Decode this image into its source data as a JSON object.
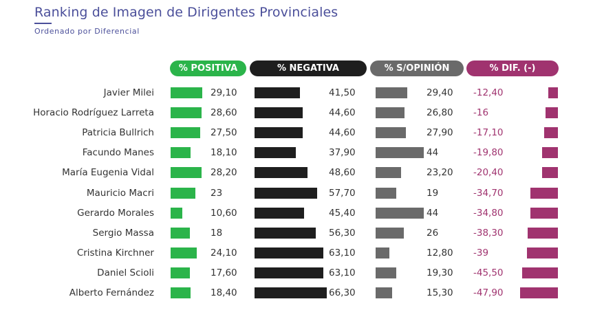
{
  "title": "Ranking de Imagen de Dirigentes Provinciales",
  "subtitle": "Ordenado por Diferencial",
  "colors": {
    "title": "#4b4f9a",
    "positiva": "#2bb44a",
    "negativa": "#1e1e1e",
    "sin_opinion": "#6a6a6a",
    "diferencial": "#a0336f"
  },
  "chart_data": {
    "type": "bar",
    "columns": [
      "% POSITIVA",
      "% NEGATIVA",
      "% S/OPINIÓN",
      "% DIF. (-)"
    ],
    "categories": [
      "Javier Milei",
      "Horacio Rodríguez Larreta",
      "Patricia Bullrich",
      "Facundo Manes",
      "María Eugenia Vidal",
      "Mauricio Macri",
      "Gerardo Morales",
      "Sergio Massa",
      "Cristina Kirchner",
      "Daniel Scioli",
      "Alberto Fernández"
    ],
    "series": [
      {
        "name": "% POSITIVA",
        "values": [
          29.1,
          28.6,
          27.5,
          18.1,
          28.2,
          23,
          10.6,
          18,
          24.1,
          17.6,
          18.4
        ],
        "labels": [
          "29,10",
          "28,60",
          "27,50",
          "18,10",
          "28,20",
          "23",
          "10,60",
          "18",
          "24,10",
          "17,60",
          "18,40"
        ]
      },
      {
        "name": "% NEGATIVA",
        "values": [
          41.5,
          44.6,
          44.6,
          37.9,
          48.6,
          57.7,
          45.4,
          56.3,
          63.1,
          63.1,
          66.3
        ],
        "labels": [
          "41,50",
          "44,60",
          "44,60",
          "37,90",
          "48,60",
          "57,70",
          "45,40",
          "56,30",
          "63,10",
          "63,10",
          "66,30"
        ]
      },
      {
        "name": "% S/OPINIÓN",
        "values": [
          29.4,
          26.8,
          27.9,
          44,
          23.2,
          19,
          44,
          26,
          12.8,
          19.3,
          15.3
        ],
        "labels": [
          "29,40",
          "26,80",
          "27,90",
          "44",
          "23,20",
          "19",
          "44",
          "26",
          "12,80",
          "19,30",
          "15,30"
        ]
      },
      {
        "name": "% DIF. (-)",
        "values": [
          -12.4,
          -16,
          -17.1,
          -19.8,
          -20.4,
          -34.7,
          -34.8,
          -38.3,
          -39,
          -45.5,
          -47.9
        ],
        "labels": [
          "-12,40",
          "-16",
          "-17,10",
          "-19,80",
          "-20,40",
          "-34,70",
          "-34,80",
          "-38,30",
          "-39",
          "-45,50",
          "-47,90"
        ]
      }
    ]
  }
}
